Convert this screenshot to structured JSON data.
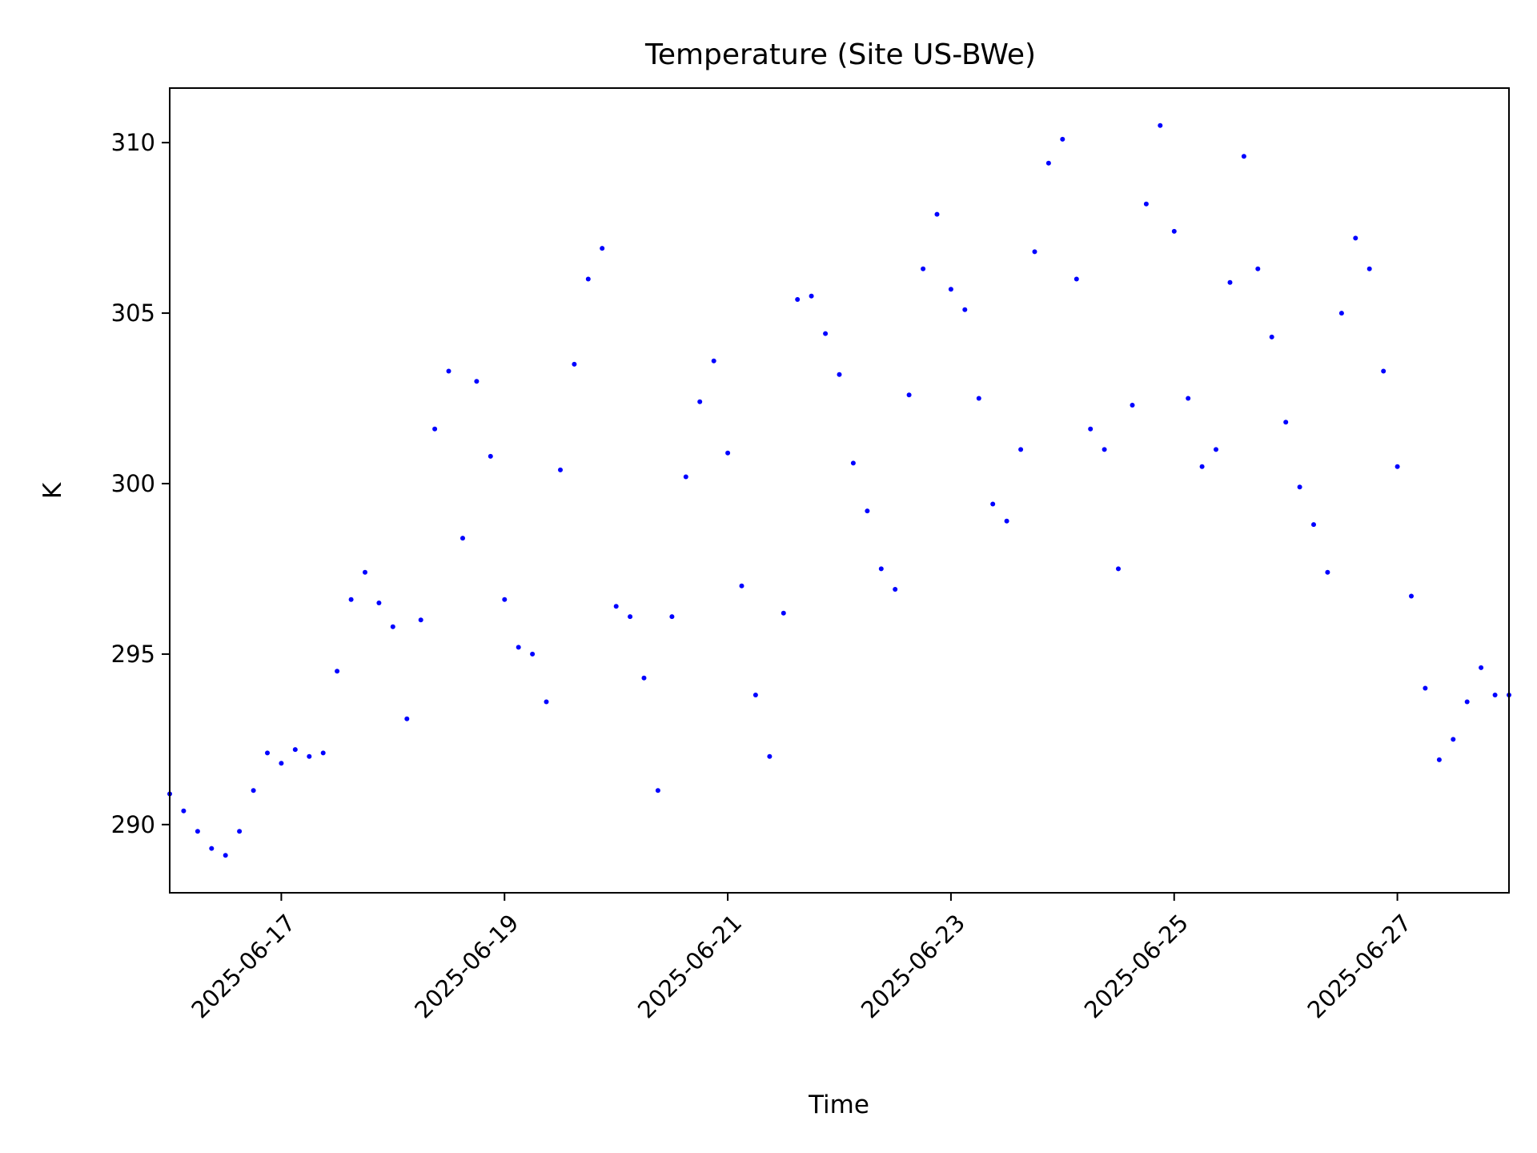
{
  "chart_data": {
    "type": "scatter",
    "title": "Temperature (Site US-BWe)",
    "xlabel": "Time",
    "ylabel": "K",
    "x_axis_type": "date",
    "xlim": [
      "2025-06-16T00:00",
      "2025-06-28T00:00"
    ],
    "ylim": [
      288,
      311.6
    ],
    "x_ticks": [
      "2025-06-17",
      "2025-06-19",
      "2025-06-21",
      "2025-06-23",
      "2025-06-25",
      "2025-06-27"
    ],
    "y_ticks": [
      290,
      295,
      300,
      305,
      310
    ],
    "grid": false,
    "legend": "none",
    "marker_color": "#0000ff",
    "series": [
      {
        "x": [
          "2025-06-16T00:00",
          "2025-06-16T03:00",
          "2025-06-16T06:00",
          "2025-06-16T09:00",
          "2025-06-16T12:00",
          "2025-06-16T15:00",
          "2025-06-16T18:00",
          "2025-06-16T21:00",
          "2025-06-17T00:00",
          "2025-06-17T03:00",
          "2025-06-17T06:00",
          "2025-06-17T09:00",
          "2025-06-17T12:00",
          "2025-06-17T15:00",
          "2025-06-17T18:00",
          "2025-06-17T21:00",
          "2025-06-18T00:00",
          "2025-06-18T03:00",
          "2025-06-18T06:00",
          "2025-06-18T09:00",
          "2025-06-18T12:00",
          "2025-06-18T15:00",
          "2025-06-18T18:00",
          "2025-06-18T21:00",
          "2025-06-19T00:00",
          "2025-06-19T03:00",
          "2025-06-19T06:00",
          "2025-06-19T09:00",
          "2025-06-19T12:00",
          "2025-06-19T15:00",
          "2025-06-19T18:00",
          "2025-06-19T21:00",
          "2025-06-20T00:00",
          "2025-06-20T03:00",
          "2025-06-20T06:00",
          "2025-06-20T09:00",
          "2025-06-20T12:00",
          "2025-06-20T15:00",
          "2025-06-20T18:00",
          "2025-06-20T21:00",
          "2025-06-21T00:00",
          "2025-06-21T03:00",
          "2025-06-21T06:00",
          "2025-06-21T09:00",
          "2025-06-21T12:00",
          "2025-06-21T15:00",
          "2025-06-21T18:00",
          "2025-06-21T21:00",
          "2025-06-22T00:00",
          "2025-06-22T03:00",
          "2025-06-22T06:00",
          "2025-06-22T09:00",
          "2025-06-22T12:00",
          "2025-06-22T15:00",
          "2025-06-22T18:00",
          "2025-06-22T21:00",
          "2025-06-23T00:00",
          "2025-06-23T03:00",
          "2025-06-23T06:00",
          "2025-06-23T09:00",
          "2025-06-23T12:00",
          "2025-06-23T15:00",
          "2025-06-23T18:00",
          "2025-06-23T21:00",
          "2025-06-24T00:00",
          "2025-06-24T03:00",
          "2025-06-24T06:00",
          "2025-06-24T09:00",
          "2025-06-24T12:00",
          "2025-06-24T15:00",
          "2025-06-24T18:00",
          "2025-06-24T21:00",
          "2025-06-25T00:00",
          "2025-06-25T03:00",
          "2025-06-25T06:00",
          "2025-06-25T09:00",
          "2025-06-25T12:00",
          "2025-06-25T15:00",
          "2025-06-25T18:00",
          "2025-06-25T21:00",
          "2025-06-26T00:00",
          "2025-06-26T03:00",
          "2025-06-26T06:00",
          "2025-06-26T09:00",
          "2025-06-26T12:00",
          "2025-06-26T15:00",
          "2025-06-26T18:00",
          "2025-06-26T21:00",
          "2025-06-27T00:00",
          "2025-06-27T03:00",
          "2025-06-27T06:00",
          "2025-06-27T09:00",
          "2025-06-27T12:00",
          "2025-06-27T15:00",
          "2025-06-27T18:00",
          "2025-06-27T21:00",
          "2025-06-28T00:00"
        ],
        "y": [
          290.9,
          290.4,
          289.8,
          289.3,
          289.1,
          289.8,
          291.0,
          292.1,
          291.8,
          292.2,
          292.0,
          292.1,
          294.5,
          296.6,
          297.4,
          296.5,
          295.8,
          293.1,
          296.0,
          301.6,
          303.3,
          298.4,
          303.0,
          300.8,
          296.6,
          295.2,
          295.0,
          293.6,
          300.4,
          303.5,
          306.0,
          306.9,
          296.4,
          296.1,
          294.3,
          291.0,
          296.1,
          300.2,
          302.4,
          303.6,
          300.9,
          297.0,
          293.8,
          292.0,
          296.2,
          305.4,
          305.5,
          304.4,
          303.2,
          300.6,
          299.2,
          297.5,
          296.9,
          302.6,
          306.3,
          307.9,
          305.7,
          305.1,
          302.5,
          299.4,
          298.9,
          301.0,
          306.8,
          309.4,
          310.1,
          306.0,
          301.6,
          301.0,
          297.5,
          302.3,
          308.2,
          310.5,
          307.4,
          302.5,
          300.5,
          301.0,
          305.9,
          309.6,
          306.3,
          304.3,
          301.8,
          299.9,
          298.8,
          297.4,
          305.0,
          307.2,
          306.3,
          303.3,
          300.5,
          296.7,
          294.0,
          291.9,
          292.5,
          293.6,
          294.6,
          293.8,
          293.8
        ]
      }
    ]
  }
}
